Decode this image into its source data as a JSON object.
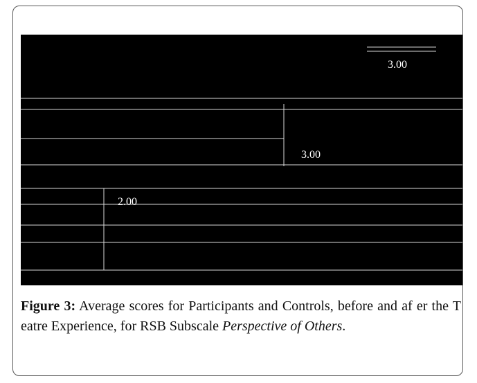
{
  "figure": {
    "image_labels": [
      "3.00",
      "3.00",
      "2.00"
    ],
    "caption": {
      "label": "Figure 3:",
      "text": "Average scores for Participants and Controls, before and af er the T eatre Experience, for RSB Subscale",
      "emphasis": "Perspective of Others",
      "end": "."
    }
  }
}
